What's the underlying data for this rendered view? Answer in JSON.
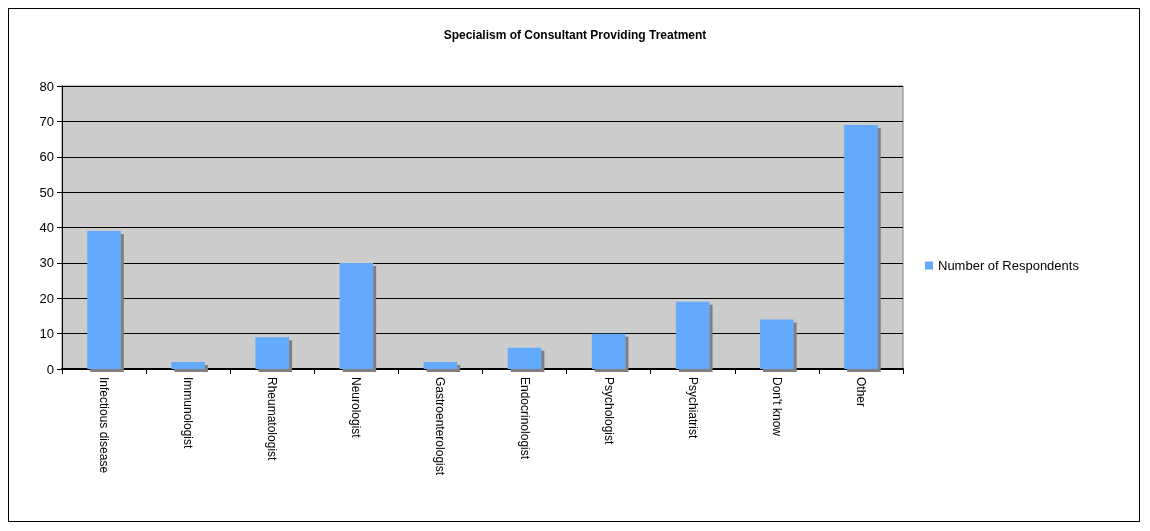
{
  "chart_data": {
    "type": "bar",
    "title": "Specialism of Consultant Providing Treatment",
    "categories": [
      "Infectious disease",
      "Immunologist",
      "Rheumatologist",
      "Neurologist",
      "Gastroenterologist",
      "Endocrinologist",
      "Psychologist",
      "Psychiatrist",
      "Don't know",
      "Other"
    ],
    "series": [
      {
        "name": "Number of Respondents",
        "color": "#63aaff",
        "values": [
          39,
          2,
          9,
          30,
          2,
          6,
          10,
          19,
          14,
          69
        ]
      }
    ],
    "ylim": [
      0,
      80
    ],
    "yticks": [
      0,
      10,
      20,
      30,
      40,
      50,
      60,
      70,
      80
    ],
    "grid": "y",
    "legend": "right"
  }
}
